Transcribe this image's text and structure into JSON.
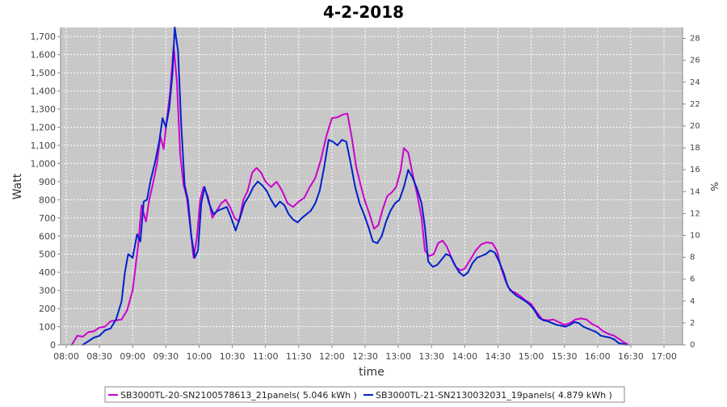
{
  "chart_data": {
    "type": "line",
    "title": "4-2-2018",
    "xlabel": "time",
    "ylabel": "Watt",
    "y2label": "%",
    "ylim": [
      0,
      1750
    ],
    "y2lim": [
      0,
      29
    ],
    "grid": true,
    "legend_position": "bottom",
    "x_ticks": [
      "08:00",
      "08:30",
      "09:00",
      "09:30",
      "10:00",
      "10:30",
      "11:00",
      "11:30",
      "12:00",
      "12:30",
      "13:00",
      "13:30",
      "14:00",
      "14:30",
      "15:00",
      "15:30",
      "16:00",
      "16:30",
      "17:00"
    ],
    "y_ticks": [
      0,
      100,
      200,
      300,
      400,
      500,
      600,
      700,
      800,
      900,
      1000,
      1100,
      1200,
      1300,
      1400,
      1500,
      1600,
      1700
    ],
    "y_tick_labels": [
      "0",
      "100",
      "200",
      "300",
      "400",
      "500",
      "600",
      "700",
      "800",
      "900",
      "1,000",
      "1,100",
      "1,200",
      "1,300",
      "1,400",
      "1,500",
      "1,600",
      "1,700"
    ],
    "y2_ticks": [
      0,
      2,
      4,
      6,
      8,
      10,
      12,
      14,
      16,
      18,
      20,
      22,
      24,
      26,
      28
    ],
    "colors": {
      "plot_bg": "#c8c8c8",
      "grid": "#ffffff"
    },
    "series": [
      {
        "name": "SB3000TL-20-SN2100578613_21panels( 5.046 kWh )",
        "color": "#cc00cc",
        "points": [
          [
            "08:05",
            0
          ],
          [
            "08:10",
            50
          ],
          [
            "08:15",
            45
          ],
          [
            "08:20",
            70
          ],
          [
            "08:25",
            75
          ],
          [
            "08:30",
            95
          ],
          [
            "08:35",
            100
          ],
          [
            "08:40",
            130
          ],
          [
            "08:45",
            135
          ],
          [
            "08:50",
            140
          ],
          [
            "08:55",
            190
          ],
          [
            "09:00",
            300
          ],
          [
            "09:05",
            550
          ],
          [
            "09:08",
            770
          ],
          [
            "09:12",
            680
          ],
          [
            "09:15",
            800
          ],
          [
            "09:18",
            880
          ],
          [
            "09:22",
            1000
          ],
          [
            "09:25",
            1150
          ],
          [
            "09:28",
            1080
          ],
          [
            "09:31",
            1250
          ],
          [
            "09:34",
            1400
          ],
          [
            "09:37",
            1650
          ],
          [
            "09:40",
            1450
          ],
          [
            "09:43",
            1050
          ],
          [
            "09:46",
            880
          ],
          [
            "09:49",
            810
          ],
          [
            "09:52",
            650
          ],
          [
            "09:55",
            480
          ],
          [
            "09:58",
            590
          ],
          [
            "10:01",
            800
          ],
          [
            "10:04",
            870
          ],
          [
            "10:08",
            820
          ],
          [
            "10:12",
            700
          ],
          [
            "10:16",
            740
          ],
          [
            "10:20",
            780
          ],
          [
            "10:24",
            800
          ],
          [
            "10:28",
            760
          ],
          [
            "10:32",
            700
          ],
          [
            "10:36",
            680
          ],
          [
            "10:40",
            800
          ],
          [
            "10:44",
            850
          ],
          [
            "10:48",
            950
          ],
          [
            "10:52",
            975
          ],
          [
            "10:56",
            950
          ],
          [
            "11:00",
            900
          ],
          [
            "11:05",
            870
          ],
          [
            "11:10",
            900
          ],
          [
            "11:15",
            850
          ],
          [
            "11:20",
            780
          ],
          [
            "11:25",
            760
          ],
          [
            "11:30",
            790
          ],
          [
            "11:35",
            810
          ],
          [
            "11:40",
            870
          ],
          [
            "11:45",
            920
          ],
          [
            "11:50",
            1020
          ],
          [
            "11:55",
            1150
          ],
          [
            "12:00",
            1250
          ],
          [
            "12:05",
            1255
          ],
          [
            "12:10",
            1270
          ],
          [
            "12:14",
            1275
          ],
          [
            "12:18",
            1140
          ],
          [
            "12:22",
            980
          ],
          [
            "12:26",
            880
          ],
          [
            "12:30",
            790
          ],
          [
            "12:34",
            720
          ],
          [
            "12:38",
            640
          ],
          [
            "12:42",
            660
          ],
          [
            "12:46",
            750
          ],
          [
            "12:50",
            820
          ],
          [
            "12:54",
            840
          ],
          [
            "12:58",
            870
          ],
          [
            "13:02",
            960
          ],
          [
            "13:05",
            1085
          ],
          [
            "13:09",
            1060
          ],
          [
            "13:13",
            940
          ],
          [
            "13:17",
            830
          ],
          [
            "13:21",
            700
          ],
          [
            "13:24",
            520
          ],
          [
            "13:28",
            490
          ],
          [
            "13:32",
            500
          ],
          [
            "13:36",
            560
          ],
          [
            "13:40",
            575
          ],
          [
            "13:44",
            540
          ],
          [
            "13:48",
            480
          ],
          [
            "13:52",
            430
          ],
          [
            "13:56",
            410
          ],
          [
            "14:00",
            420
          ],
          [
            "14:05",
            470
          ],
          [
            "14:10",
            520
          ],
          [
            "14:15",
            555
          ],
          [
            "14:20",
            565
          ],
          [
            "14:25",
            560
          ],
          [
            "14:29",
            520
          ],
          [
            "14:33",
            420
          ],
          [
            "14:37",
            350
          ],
          [
            "14:41",
            300
          ],
          [
            "14:45",
            290
          ],
          [
            "14:50",
            270
          ],
          [
            "14:55",
            245
          ],
          [
            "15:00",
            225
          ],
          [
            "15:05",
            180
          ],
          [
            "15:10",
            140
          ],
          [
            "15:15",
            135
          ],
          [
            "15:20",
            140
          ],
          [
            "15:25",
            125
          ],
          [
            "15:30",
            110
          ],
          [
            "15:35",
            120
          ],
          [
            "15:40",
            140
          ],
          [
            "15:45",
            145
          ],
          [
            "15:50",
            140
          ],
          [
            "15:55",
            115
          ],
          [
            "16:00",
            100
          ],
          [
            "16:05",
            75
          ],
          [
            "16:10",
            60
          ],
          [
            "16:15",
            50
          ],
          [
            "16:20",
            30
          ],
          [
            "16:25",
            10
          ],
          [
            "16:28",
            0
          ]
        ]
      },
      {
        "name": "SB3000TL-21-SN2130032031_19panels( 4.879 kWh )",
        "color": "#0020cc",
        "points": [
          [
            "08:15",
            0
          ],
          [
            "08:20",
            20
          ],
          [
            "08:25",
            40
          ],
          [
            "08:30",
            50
          ],
          [
            "08:35",
            80
          ],
          [
            "08:40",
            90
          ],
          [
            "08:45",
            140
          ],
          [
            "08:50",
            240
          ],
          [
            "08:53",
            400
          ],
          [
            "08:56",
            500
          ],
          [
            "09:00",
            480
          ],
          [
            "09:04",
            610
          ],
          [
            "09:07",
            570
          ],
          [
            "09:10",
            790
          ],
          [
            "09:13",
            800
          ],
          [
            "09:16",
            900
          ],
          [
            "09:20",
            1000
          ],
          [
            "09:24",
            1120
          ],
          [
            "09:27",
            1250
          ],
          [
            "09:30",
            1200
          ],
          [
            "09:33",
            1300
          ],
          [
            "09:36",
            1500
          ],
          [
            "09:38",
            1780
          ],
          [
            "09:41",
            1620
          ],
          [
            "09:44",
            1200
          ],
          [
            "09:47",
            880
          ],
          [
            "09:50",
            800
          ],
          [
            "09:53",
            600
          ],
          [
            "09:56",
            480
          ],
          [
            "09:59",
            520
          ],
          [
            "10:02",
            780
          ],
          [
            "10:05",
            870
          ],
          [
            "10:09",
            780
          ],
          [
            "10:13",
            720
          ],
          [
            "10:17",
            740
          ],
          [
            "10:21",
            750
          ],
          [
            "10:25",
            760
          ],
          [
            "10:29",
            700
          ],
          [
            "10:33",
            630
          ],
          [
            "10:37",
            700
          ],
          [
            "10:41",
            780
          ],
          [
            "10:45",
            820
          ],
          [
            "10:49",
            870
          ],
          [
            "10:53",
            900
          ],
          [
            "10:57",
            880
          ],
          [
            "11:01",
            850
          ],
          [
            "11:05",
            800
          ],
          [
            "11:09",
            760
          ],
          [
            "11:13",
            790
          ],
          [
            "11:17",
            770
          ],
          [
            "11:21",
            720
          ],
          [
            "11:25",
            690
          ],
          [
            "11:29",
            675
          ],
          [
            "11:33",
            700
          ],
          [
            "11:37",
            720
          ],
          [
            "11:41",
            740
          ],
          [
            "11:45",
            780
          ],
          [
            "11:49",
            850
          ],
          [
            "11:53",
            980
          ],
          [
            "11:57",
            1130
          ],
          [
            "12:01",
            1120
          ],
          [
            "12:05",
            1100
          ],
          [
            "12:09",
            1130
          ],
          [
            "12:13",
            1120
          ],
          [
            "12:17",
            1000
          ],
          [
            "12:21",
            870
          ],
          [
            "12:25",
            780
          ],
          [
            "12:29",
            720
          ],
          [
            "12:33",
            650
          ],
          [
            "12:37",
            570
          ],
          [
            "12:41",
            560
          ],
          [
            "12:45",
            600
          ],
          [
            "12:49",
            680
          ],
          [
            "12:53",
            740
          ],
          [
            "12:57",
            780
          ],
          [
            "13:01",
            800
          ],
          [
            "13:05",
            870
          ],
          [
            "13:09",
            965
          ],
          [
            "13:13",
            920
          ],
          [
            "13:17",
            860
          ],
          [
            "13:21",
            780
          ],
          [
            "13:24",
            650
          ],
          [
            "13:27",
            460
          ],
          [
            "13:31",
            430
          ],
          [
            "13:35",
            440
          ],
          [
            "13:39",
            470
          ],
          [
            "13:43",
            500
          ],
          [
            "13:47",
            490
          ],
          [
            "13:51",
            440
          ],
          [
            "13:55",
            400
          ],
          [
            "13:59",
            380
          ],
          [
            "14:03",
            400
          ],
          [
            "14:07",
            450
          ],
          [
            "14:11",
            480
          ],
          [
            "14:15",
            490
          ],
          [
            "14:19",
            500
          ],
          [
            "14:23",
            520
          ],
          [
            "14:27",
            510
          ],
          [
            "14:31",
            460
          ],
          [
            "14:35",
            400
          ],
          [
            "14:39",
            320
          ],
          [
            "14:43",
            290
          ],
          [
            "14:47",
            270
          ],
          [
            "14:51",
            255
          ],
          [
            "14:55",
            240
          ],
          [
            "14:59",
            220
          ],
          [
            "15:03",
            190
          ],
          [
            "15:07",
            150
          ],
          [
            "15:11",
            135
          ],
          [
            "15:15",
            130
          ],
          [
            "15:19",
            120
          ],
          [
            "15:23",
            110
          ],
          [
            "15:27",
            105
          ],
          [
            "15:31",
            100
          ],
          [
            "15:35",
            110
          ],
          [
            "15:39",
            125
          ],
          [
            "15:43",
            120
          ],
          [
            "15:47",
            100
          ],
          [
            "15:51",
            90
          ],
          [
            "15:55",
            80
          ],
          [
            "15:59",
            70
          ],
          [
            "16:03",
            50
          ],
          [
            "16:07",
            45
          ],
          [
            "16:11",
            40
          ],
          [
            "16:15",
            30
          ],
          [
            "16:19",
            10
          ],
          [
            "16:23",
            5
          ],
          [
            "16:26",
            0
          ]
        ]
      }
    ]
  }
}
